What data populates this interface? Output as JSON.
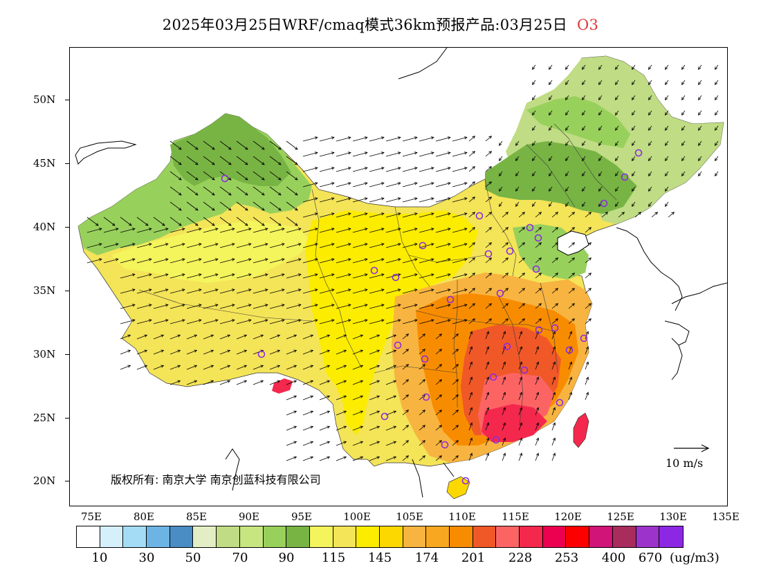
{
  "title": {
    "main": "2025年03月25日WRF/cmaq模式36km预报产品:03月25日",
    "species": "O3"
  },
  "axes": {
    "lat_labels": [
      "50N",
      "45N",
      "40N",
      "35N",
      "30N",
      "25N",
      "20N"
    ],
    "lon_labels": [
      "75E",
      "80E",
      "85E",
      "90E",
      "95E",
      "100E",
      "105E",
      "110E",
      "115E",
      "120E",
      "125E",
      "130E",
      "135E"
    ]
  },
  "copyright": "版权所有: 南京大学 南京创蓝科技有限公司",
  "reference_vector": "10 m/s",
  "legend": {
    "colors": [
      "#ffffff",
      "#d6f0fb",
      "#a4dcf5",
      "#6cb4e4",
      "#4a8cc4",
      "#e4eec4",
      "#c0dc84",
      "#c8e680",
      "#98d05c",
      "#78b444",
      "#f4f45c",
      "#f4e458",
      "#fcec00",
      "#fcd800",
      "#f8b440",
      "#f8a820",
      "#f88c00",
      "#f05828",
      "#fc6464",
      "#f4284c",
      "#ec0050",
      "#fc0000",
      "#d01478",
      "#a82c5c",
      "#9c34cc",
      "#8c28e4"
    ],
    "labels": [
      "10",
      "30",
      "50",
      "70",
      "90",
      "115",
      "145",
      "174",
      "201",
      "228",
      "253",
      "400",
      "670"
    ],
    "unit": "(ug/m3)"
  },
  "map_colors": {
    "green_dark": "#78b444",
    "green": "#98d05c",
    "green_light": "#c0dc84",
    "yellow_light": "#f4f45c",
    "yellow": "#f4e458",
    "yellow_strong": "#fcec00",
    "orange_light": "#f8b440",
    "orange": "#f88c00",
    "red_orange": "#f05828",
    "red": "#f4284c",
    "magenta": "#d01478"
  }
}
